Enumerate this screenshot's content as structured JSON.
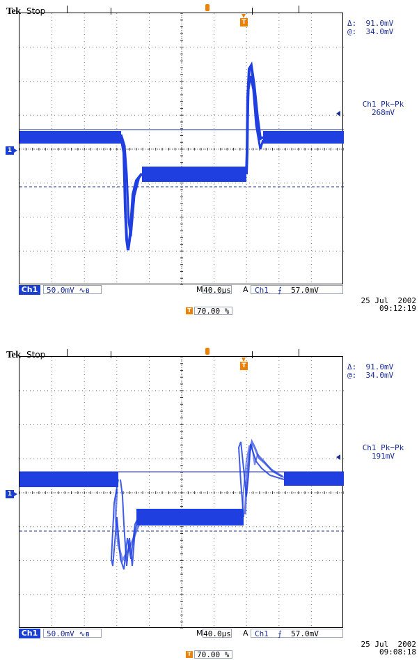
{
  "screens": [
    {
      "brand": "Tek",
      "status": "Stop",
      "delta": "Δ:  91.0mV",
      "at": "@:  34.0mV",
      "measure_name": "Ch1 Pk−Pk",
      "measure_value": "268mV",
      "ch_label": "Ch1",
      "ch_scale": "50.0mV",
      "m_label": "M",
      "timebase": "40.0µs",
      "a_label": "A",
      "trigger": "Ch1  ⨍",
      "trigger_level": "57.0mV",
      "date": "25 Jul  2002",
      "time": "09:12:19",
      "trigger_pos": "70.00 %"
    },
    {
      "brand": "Tek",
      "status": "Stop",
      "delta": "Δ:  91.0mV",
      "at": "@:  34.0mV",
      "measure_name": "Ch1 Pk−Pk",
      "measure_value": "191mV",
      "ch_label": "Ch1",
      "ch_scale": "50.0mV",
      "m_label": "M",
      "timebase": "40.0µs",
      "a_label": "A",
      "trigger": "Ch1  ⨍",
      "trigger_level": "57.0mV",
      "date": "25 Jul  2002",
      "time": "09:08:18",
      "trigger_pos": "70.00 %"
    }
  ],
  "colors": {
    "trace": "#1f3fe0",
    "cursor": "#1a2d9a",
    "trigger": "#f08000"
  },
  "icons": {
    "trigger_marker": "trigger-t-icon",
    "channel_marker": "channel-1-marker-icon",
    "measure_arrow": "arrow-left-icon"
  }
}
